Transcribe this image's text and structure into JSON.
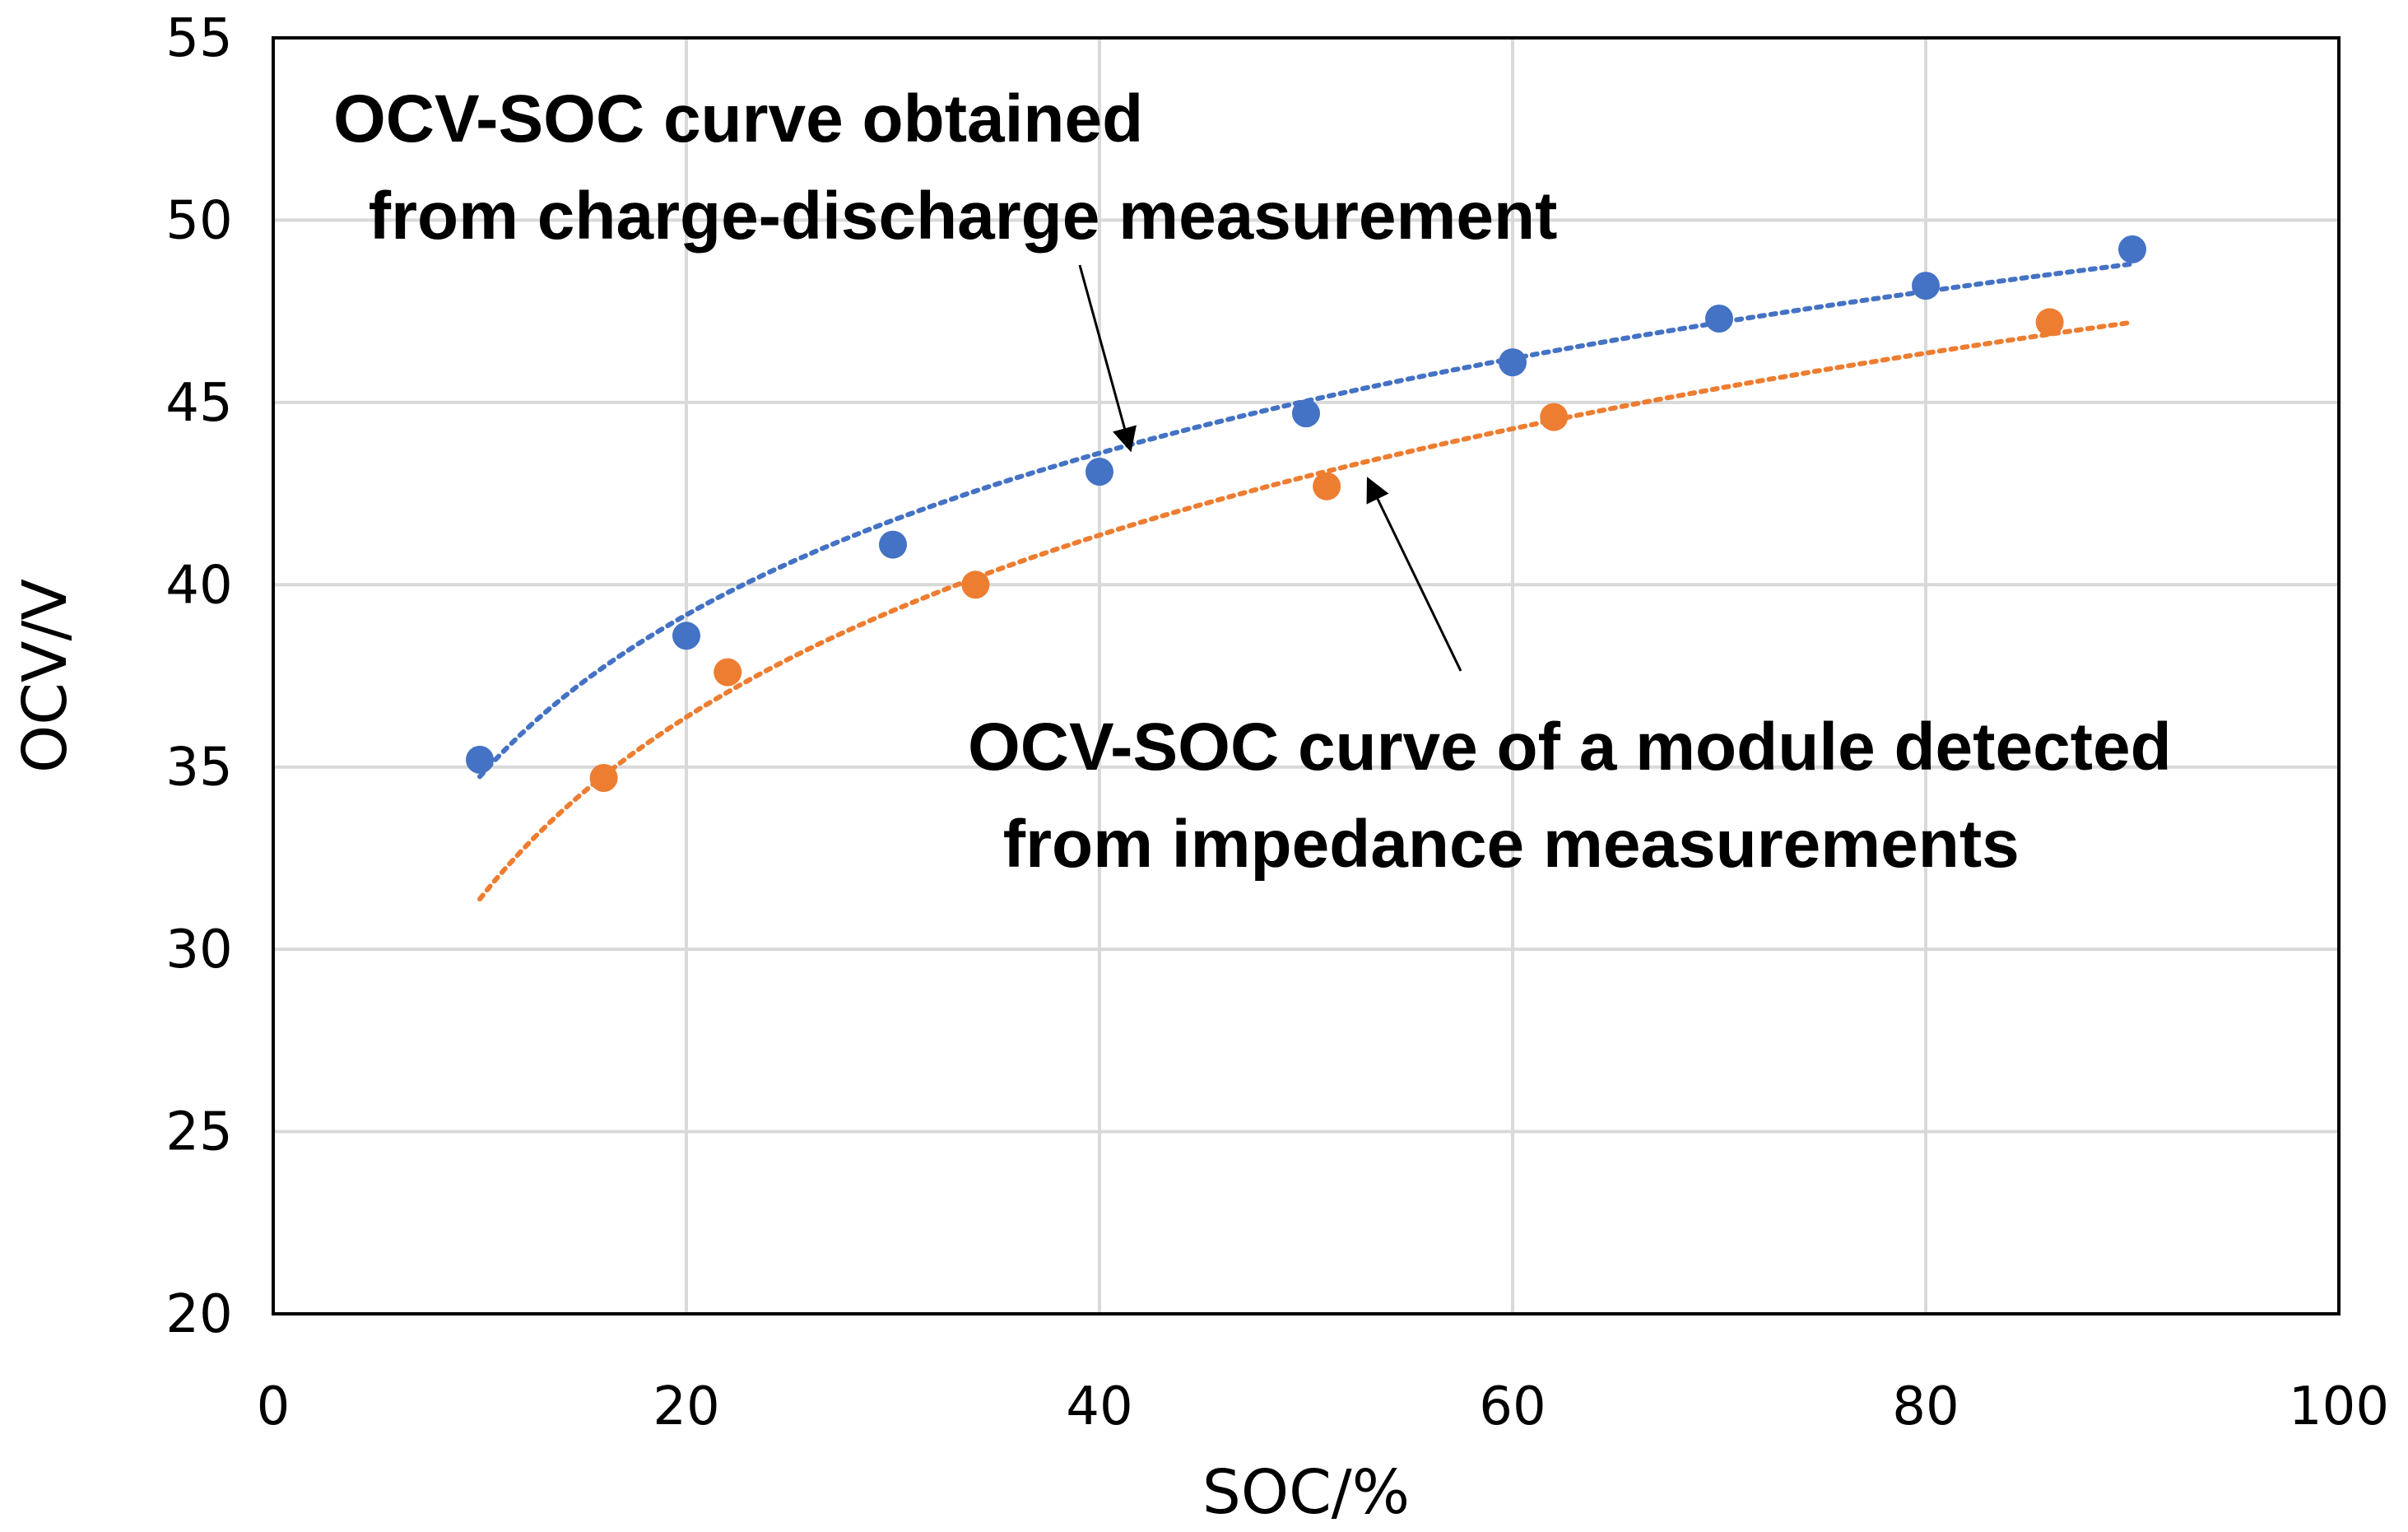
{
  "chart_data": {
    "type": "scatter",
    "title": "",
    "xlabel": "SOC/%",
    "ylabel": "OCV/V",
    "xlim": [
      0,
      100
    ],
    "ylim": [
      20,
      55
    ],
    "xticks": [
      0,
      20,
      40,
      60,
      80,
      100
    ],
    "yticks": [
      20,
      25,
      30,
      35,
      40,
      45,
      50,
      55
    ],
    "grid": true,
    "series": [
      {
        "name": "OCV-SOC curve obtained from charge-discharge measurement",
        "color": "#4472c4",
        "x": [
          10,
          20,
          30,
          40,
          50,
          60,
          70,
          80,
          90
        ],
        "y": [
          35.2,
          38.6,
          41.1,
          43.1,
          44.7,
          46.1,
          47.3,
          48.2,
          49.2
        ],
        "trendline": {
          "type": "logarithmic",
          "x_range": [
            10,
            90
          ],
          "a": 6.4,
          "b": 20.0
        }
      },
      {
        "name": "OCV-SOC curve of a module detected from impedance measurements",
        "color": "#ed7d31",
        "x": [
          16,
          22,
          34,
          51,
          62,
          86
        ],
        "y": [
          34.7,
          37.6,
          40.0,
          42.7,
          44.6,
          47.2
        ],
        "trendline": {
          "type": "logarithmic",
          "x_range": [
            10,
            90
          ],
          "a": 7.2,
          "b": 14.8
        }
      }
    ],
    "annotations": [
      {
        "lines": [
          "OCV-SOC curve obtained",
          " from charge-discharge measurement"
        ],
        "arrow_to": [
          41.5,
          43.7
        ]
      },
      {
        "lines": [
          "OCV-SOC curve of a module detected",
          " from impedance measurements"
        ],
        "arrow_to": [
          53,
          42.9
        ]
      }
    ]
  }
}
